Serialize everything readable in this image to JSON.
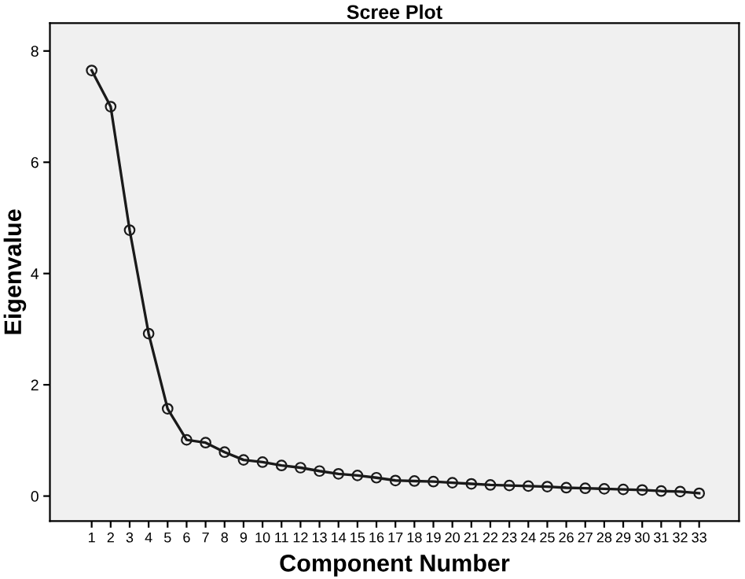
{
  "chart_data": {
    "type": "line",
    "title": "Scree Plot",
    "xlabel": "Component Number",
    "ylabel": "Eigenvalue",
    "x": [
      1,
      2,
      3,
      4,
      5,
      6,
      7,
      8,
      9,
      10,
      11,
      12,
      13,
      14,
      15,
      16,
      17,
      18,
      19,
      20,
      21,
      22,
      23,
      24,
      25,
      26,
      27,
      28,
      29,
      30,
      31,
      32,
      33
    ],
    "series": [
      {
        "color": "#1a1a1a",
        "values": [
          7.65,
          7.0,
          4.78,
          2.92,
          1.57,
          1.01,
          0.96,
          0.79,
          0.65,
          0.61,
          0.55,
          0.51,
          0.45,
          0.4,
          0.37,
          0.33,
          0.28,
          0.27,
          0.26,
          0.24,
          0.22,
          0.2,
          0.19,
          0.18,
          0.17,
          0.15,
          0.14,
          0.13,
          0.12,
          0.11,
          0.09,
          0.08,
          0.05
        ]
      }
    ],
    "xlim": [
      -1.2,
      35.1
    ],
    "xticks": [
      1,
      2,
      3,
      4,
      5,
      6,
      7,
      8,
      9,
      10,
      11,
      12,
      13,
      14,
      15,
      16,
      17,
      18,
      19,
      20,
      21,
      22,
      23,
      24,
      25,
      26,
      27,
      28,
      29,
      30,
      31,
      32,
      33
    ],
    "ylim": [
      -0.45,
      8.5
    ],
    "yticks": [
      0,
      2,
      4,
      6,
      8
    ],
    "marker": "circle",
    "line_style": "solid",
    "grid": false,
    "legend": false
  }
}
